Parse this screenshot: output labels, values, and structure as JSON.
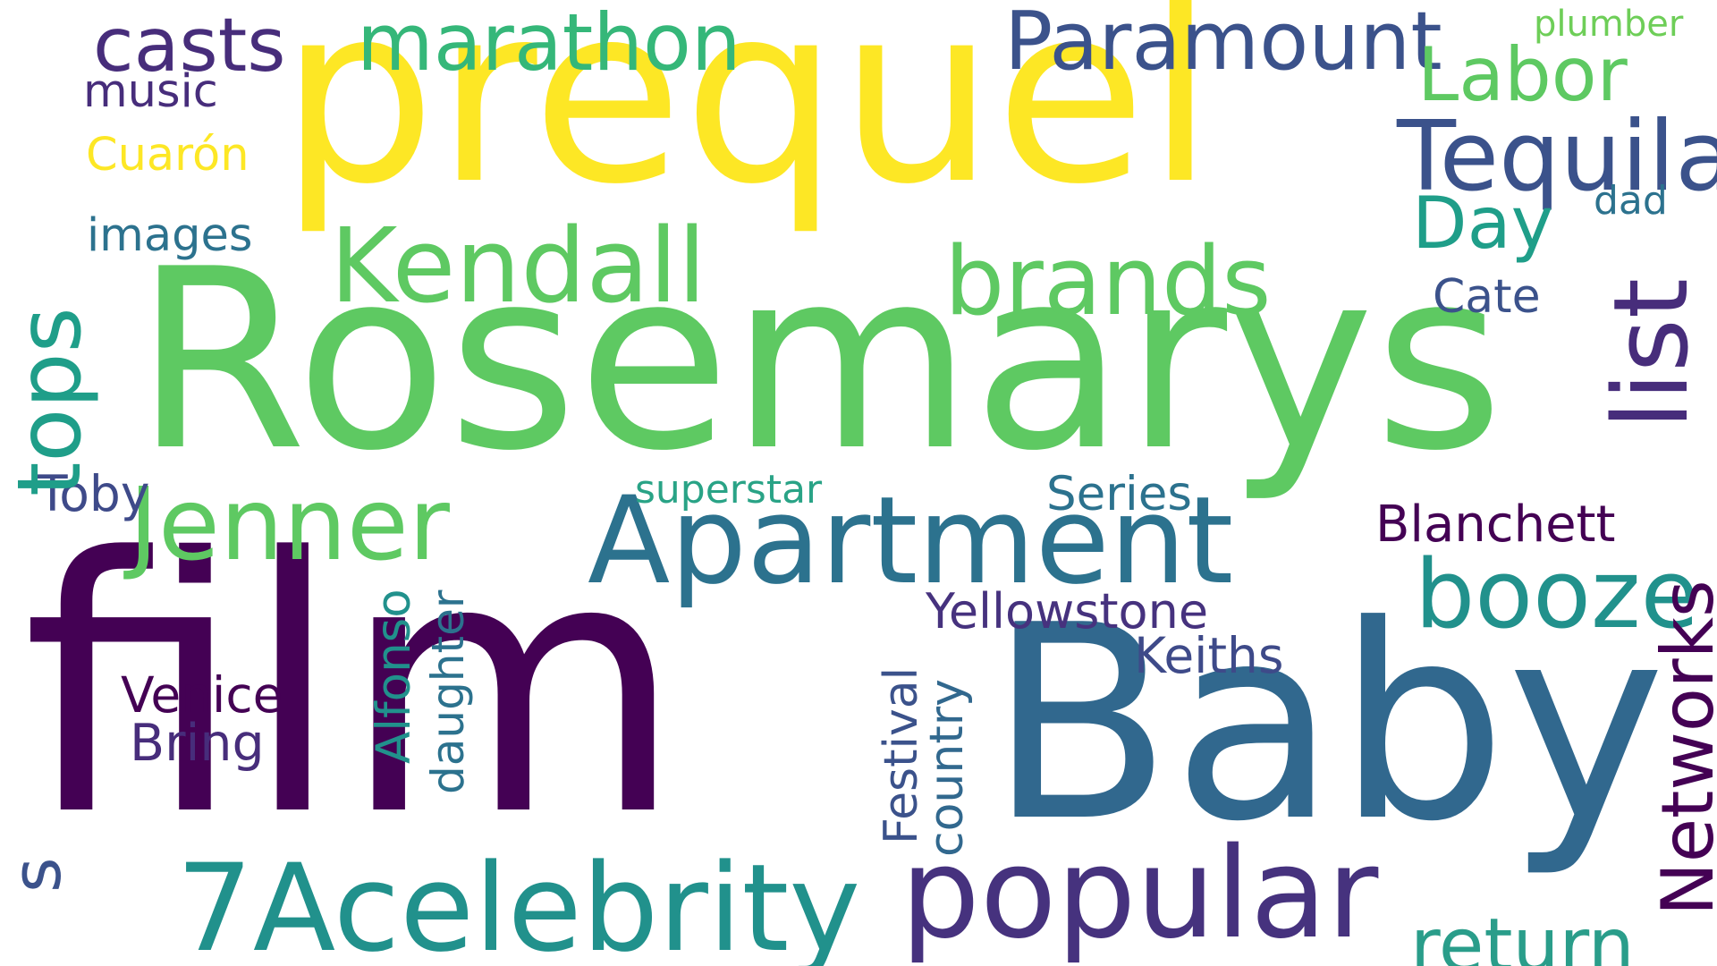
{
  "words": [
    {
      "text": "prequel",
      "color": "#fde725"
    },
    {
      "text": "Rosemarys",
      "color": "#5ec962"
    },
    {
      "text": "film",
      "color": "#440154"
    },
    {
      "text": "Baby",
      "color": "#31688e"
    },
    {
      "text": "Apartment",
      "color": "#2c728e"
    },
    {
      "text": "popular",
      "color": "#46327e"
    },
    {
      "text": "7Acelebrity",
      "color": "#21918c"
    },
    {
      "text": "Kendall",
      "color": "#5ec962"
    },
    {
      "text": "brands",
      "color": "#5ec962"
    },
    {
      "text": "Jenner",
      "color": "#5ec962"
    },
    {
      "text": "Tequila",
      "color": "#3b528b"
    },
    {
      "text": "booze",
      "color": "#21918c"
    },
    {
      "text": "tops",
      "color": "#1f9e89"
    },
    {
      "text": "list",
      "color": "#472d7b"
    },
    {
      "text": "Networks",
      "color": "#440154"
    },
    {
      "text": "Paramount",
      "color": "#3b528b"
    },
    {
      "text": "marathon",
      "color": "#35b779"
    },
    {
      "text": "casts",
      "color": "#472d7b"
    },
    {
      "text": "Labor",
      "color": "#5ec962"
    },
    {
      "text": "Day",
      "color": "#1f9e89"
    },
    {
      "text": "return",
      "color": "#2a9d8a"
    },
    {
      "text": "Yellowstone",
      "color": "#46327e"
    },
    {
      "text": "Keiths",
      "color": "#3e4a89"
    },
    {
      "text": "Series",
      "color": "#2c728e"
    },
    {
      "text": "superstar",
      "color": "#29a386"
    },
    {
      "text": "Blanchett",
      "color": "#440154"
    },
    {
      "text": "Cate",
      "color": "#3b528b"
    },
    {
      "text": "dad",
      "color": "#2c728e"
    },
    {
      "text": "plumber",
      "color": "#6ece58"
    },
    {
      "text": "music",
      "color": "#472d7b"
    },
    {
      "text": "Cuarón",
      "color": "#fde725"
    },
    {
      "text": "images",
      "color": "#2c728e"
    },
    {
      "text": "Toby",
      "color": "#3e4a89"
    },
    {
      "text": "Venice",
      "color": "#440154"
    },
    {
      "text": "Bring",
      "color": "#472d7b"
    },
    {
      "text": "Alfonso",
      "color": "#21918c"
    },
    {
      "text": "daughter",
      "color": "#2c728e"
    },
    {
      "text": "Festival",
      "color": "#3b528b"
    },
    {
      "text": "country",
      "color": "#31688e"
    },
    {
      "text": "s",
      "color": "#3b528b"
    }
  ]
}
